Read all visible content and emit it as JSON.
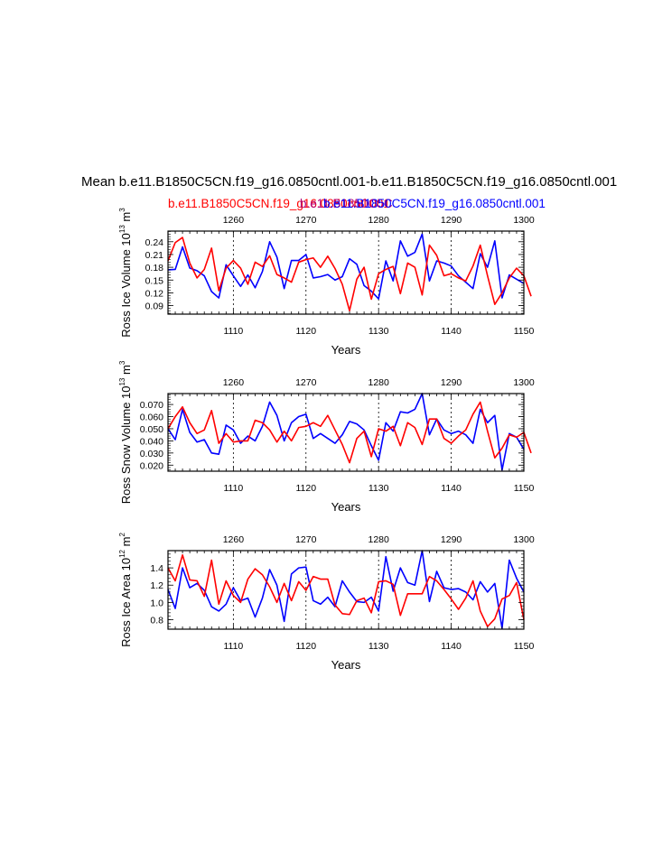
{
  "figure": {
    "title": "Mean b.e11.B1850C5CN.f19_g16.0850cntl.001-b.e11.B1850C5CN.f19_g16.0850cntl.001",
    "subtitle_red": "b.e11.B1850C5CN.f19_g16.0850cntl.001",
    "subtitle_overlap": "b.e11.B1850C5C",
    "subtitle_blue": "b.e11.B1850C5CN.f19_g16.0850cntl.001",
    "colors": {
      "red": "#ff0000",
      "blue": "#0000ff",
      "black": "#000000"
    }
  },
  "chart_data": [
    {
      "type": "line",
      "ylabel": "Ross Ice Volume",
      "yunit_base": "10",
      "yunit_exp": "13",
      "yunit_m": "m",
      "yunit_m_exp": "3",
      "xlabel": "Years",
      "ylim": [
        0.07,
        0.265
      ],
      "yticks": [
        0.09,
        0.12,
        0.15,
        0.18,
        0.21,
        0.24
      ],
      "ytick_labels": [
        "0.09",
        "0.12",
        "0.15",
        "0.18",
        "0.21",
        "0.24"
      ],
      "bottom_axis": {
        "range": [
          1101,
          1150
        ],
        "ticks": [
          1110,
          1120,
          1130,
          1140,
          1150
        ],
        "labels": [
          "1110",
          "1120",
          "1130",
          "1140",
          "1150"
        ]
      },
      "top_axis": {
        "range": [
          1251,
          1300
        ],
        "ticks": [
          1260,
          1270,
          1280,
          1290,
          1300
        ],
        "labels": [
          "1260",
          "1270",
          "1280",
          "1290",
          "1300"
        ]
      },
      "gridlines_at_bottom_years": [
        1110,
        1120,
        1130,
        1140
      ],
      "series": [
        {
          "name": "b.e11.B1850C5CN.f19_g16.0850cntl.001 (years 1101-1150)",
          "color": "#0000ff",
          "values": [
            0.174,
            0.175,
            0.228,
            0.178,
            0.172,
            0.16,
            0.123,
            0.108,
            0.186,
            0.16,
            0.135,
            0.162,
            0.132,
            0.17,
            0.24,
            0.204,
            0.13,
            0.196,
            0.196,
            0.21,
            0.155,
            0.158,
            0.163,
            0.15,
            0.158,
            0.2,
            0.187,
            0.137,
            0.124,
            0.106,
            0.195,
            0.148,
            0.242,
            0.206,
            0.215,
            0.258,
            0.148,
            0.195,
            0.19,
            0.183,
            0.16,
            0.145,
            0.13,
            0.212,
            0.18,
            0.242,
            0.108,
            0.162,
            0.152,
            0.142
          ]
        },
        {
          "name": "b.e11.B1850C5CN.f19_g16.0850cntl.001 (years 1251-1300)",
          "color": "#ff0000",
          "values": [
            0.195,
            0.238,
            0.25,
            0.19,
            0.155,
            0.175,
            0.225,
            0.125,
            0.178,
            0.196,
            0.178,
            0.14,
            0.192,
            0.182,
            0.207,
            0.163,
            0.155,
            0.145,
            0.192,
            0.198,
            0.202,
            0.18,
            0.206,
            0.177,
            0.14,
            0.078,
            0.152,
            0.18,
            0.105,
            0.165,
            0.175,
            0.182,
            0.118,
            0.19,
            0.18,
            0.115,
            0.232,
            0.208,
            0.16,
            0.165,
            0.155,
            0.148,
            0.183,
            0.232,
            0.16,
            0.093,
            0.12,
            0.155,
            0.178,
            0.16,
            0.112
          ]
        }
      ]
    },
    {
      "type": "line",
      "ylabel": "Ross Snow Volume",
      "yunit_base": "10",
      "yunit_exp": "13",
      "yunit_m": "m",
      "yunit_m_exp": "3",
      "xlabel": "Years",
      "ylim": [
        0.015,
        0.079
      ],
      "yticks": [
        0.02,
        0.03,
        0.04,
        0.05,
        0.06,
        0.07
      ],
      "ytick_labels": [
        "0.020",
        "0.030",
        "0.040",
        "0.050",
        "0.060",
        "0.070"
      ],
      "bottom_axis": {
        "range": [
          1101,
          1150
        ],
        "ticks": [
          1110,
          1120,
          1130,
          1140,
          1150
        ],
        "labels": [
          "1110",
          "1120",
          "1130",
          "1140",
          "1150"
        ]
      },
      "top_axis": {
        "range": [
          1251,
          1300
        ],
        "ticks": [
          1260,
          1270,
          1280,
          1290,
          1300
        ],
        "labels": [
          "1260",
          "1270",
          "1280",
          "1290",
          "1300"
        ]
      },
      "gridlines_at_bottom_years": [
        1110,
        1120,
        1130,
        1140
      ],
      "series": [
        {
          "name": "b.e11.B1850C5CN.f19_g16.0850cntl.001 (years 1101-1150)",
          "color": "#0000ff",
          "values": [
            0.05,
            0.041,
            0.066,
            0.047,
            0.039,
            0.041,
            0.03,
            0.029,
            0.053,
            0.049,
            0.038,
            0.044,
            0.04,
            0.052,
            0.072,
            0.061,
            0.04,
            0.055,
            0.06,
            0.062,
            0.042,
            0.046,
            0.042,
            0.038,
            0.045,
            0.056,
            0.054,
            0.049,
            0.036,
            0.024,
            0.055,
            0.048,
            0.064,
            0.063,
            0.066,
            0.079,
            0.045,
            0.058,
            0.049,
            0.046,
            0.048,
            0.045,
            0.038,
            0.066,
            0.055,
            0.061,
            0.016,
            0.046,
            0.043,
            0.033
          ]
        },
        {
          "name": "b.e11.B1850C5CN.f19_g16.0850cntl.001 (years 1251-1300)",
          "color": "#ff0000",
          "values": [
            0.05,
            0.06,
            0.068,
            0.055,
            0.046,
            0.049,
            0.065,
            0.038,
            0.046,
            0.039,
            0.04,
            0.04,
            0.057,
            0.055,
            0.049,
            0.039,
            0.048,
            0.04,
            0.051,
            0.052,
            0.055,
            0.052,
            0.061,
            0.049,
            0.037,
            0.022,
            0.042,
            0.048,
            0.027,
            0.05,
            0.048,
            0.052,
            0.036,
            0.055,
            0.051,
            0.037,
            0.058,
            0.058,
            0.042,
            0.038,
            0.044,
            0.049,
            0.062,
            0.072,
            0.048,
            0.026,
            0.034,
            0.045,
            0.043,
            0.047,
            0.03
          ]
        }
      ]
    },
    {
      "type": "line",
      "ylabel": "Ross Ice Area",
      "yunit_base": "10",
      "yunit_exp": "12",
      "yunit_m": "m",
      "yunit_m_exp": "2",
      "xlabel": "Years",
      "ylim": [
        0.69,
        1.6
      ],
      "yticks": [
        0.8,
        1.0,
        1.2,
        1.4
      ],
      "ytick_labels": [
        "0.8",
        "1.0",
        "1.2",
        "1.4"
      ],
      "bottom_axis": {
        "range": [
          1101,
          1150
        ],
        "ticks": [
          1110,
          1120,
          1130,
          1140,
          1150
        ],
        "labels": [
          "1110",
          "1120",
          "1130",
          "1140",
          "1150"
        ]
      },
      "top_axis": {
        "range": [
          1251,
          1300
        ],
        "ticks": [
          1260,
          1270,
          1280,
          1290,
          1300
        ],
        "labels": [
          "1260",
          "1270",
          "1280",
          "1290",
          "1300"
        ]
      },
      "gridlines_at_bottom_years": [
        1110,
        1120,
        1130,
        1140
      ],
      "series": [
        {
          "name": "b.e11.B1850C5CN.f19_g16.0850cntl.001 (years 1101-1150)",
          "color": "#0000ff",
          "values": [
            1.15,
            0.93,
            1.4,
            1.17,
            1.22,
            1.14,
            0.95,
            0.9,
            0.98,
            1.17,
            1.02,
            1.05,
            0.83,
            1.05,
            1.38,
            1.2,
            0.78,
            1.33,
            1.4,
            1.41,
            1.02,
            0.98,
            1.06,
            0.95,
            1.25,
            1.12,
            1.01,
            1.0,
            1.06,
            0.9,
            1.53,
            1.13,
            1.4,
            1.23,
            1.2,
            1.6,
            1.01,
            1.36,
            1.17,
            1.15,
            1.16,
            1.12,
            1.03,
            1.24,
            1.12,
            1.22,
            0.7,
            1.49,
            1.28,
            1.12
          ]
        },
        {
          "name": "b.e11.B1850C5CN.f19_g16.0850cntl.001 (years 1251-1300)",
          "color": "#ff0000",
          "values": [
            1.4,
            1.25,
            1.55,
            1.26,
            1.25,
            1.07,
            1.49,
            0.98,
            1.25,
            1.08,
            1.0,
            1.27,
            1.39,
            1.32,
            1.18,
            1.0,
            1.22,
            1.02,
            1.24,
            1.14,
            1.3,
            1.27,
            1.27,
            0.97,
            0.87,
            0.86,
            1.02,
            1.05,
            0.88,
            1.24,
            1.25,
            1.21,
            0.85,
            1.1,
            1.1,
            1.1,
            1.3,
            1.25,
            1.15,
            1.04,
            0.92,
            1.05,
            1.25,
            0.9,
            0.72,
            0.81,
            1.04,
            1.08,
            1.23,
            0.8
          ]
        }
      ]
    }
  ]
}
